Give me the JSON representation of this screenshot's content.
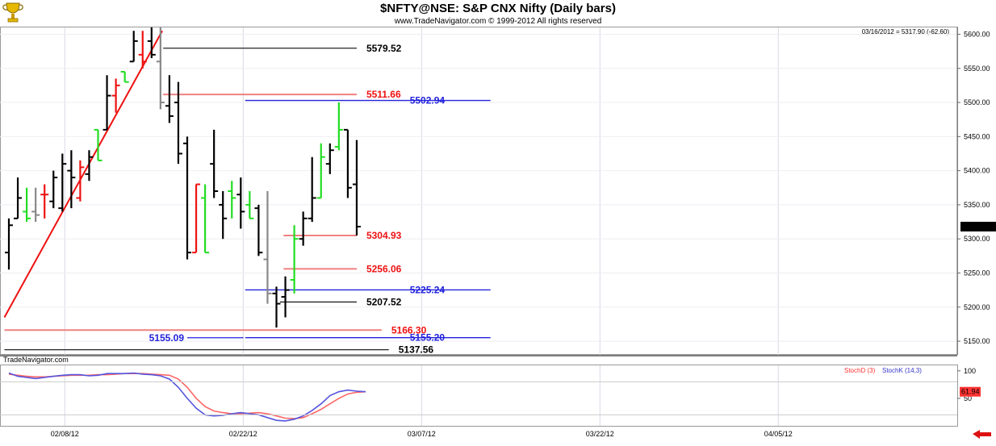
{
  "header": {
    "title": "$NFTY@NSE:  S&P CNX Nifty  (Daily bars)",
    "subtitle": "www.TradeNavigator.com © 1999-2012 All rights reserved",
    "readout": "03/16/2012 = 5317.90 (-62.60)",
    "logo_icon": "trophy-icon"
  },
  "colors": {
    "up_bar": "#000000",
    "down_bar": "#000000",
    "green_bar": "#22dd22",
    "red_bar": "#ee1111",
    "trend_line": "#ee1111",
    "blue_level": "#2222dd",
    "red_level": "#f08080",
    "black_level": "#222222",
    "stoch_d": "#ff6666",
    "stoch_k": "#5555dd",
    "grid": "#d9d9e6"
  },
  "chart_data": [
    {
      "type": "ohlc",
      "y_ticks": [
        5150,
        5200,
        5250,
        5300,
        5350,
        5400,
        5450,
        5500,
        5550,
        5600
      ],
      "ylim": [
        5130,
        5610
      ],
      "x_ticks": [
        "02/08/12",
        "02/22/12",
        "03/07/12",
        "03/22/12",
        "04/05/12"
      ],
      "last_price_label": "5317.90",
      "bars": [
        {
          "o": 5280,
          "h": 5330,
          "l": 5255,
          "c": 5320,
          "color": "black"
        },
        {
          "o": 5330,
          "h": 5390,
          "l": 5330,
          "c": 5360,
          "color": "black"
        },
        {
          "o": 5340,
          "h": 5375,
          "l": 5325,
          "c": 5330,
          "color": "green"
        },
        {
          "o": 5340,
          "h": 5375,
          "l": 5325,
          "c": 5335,
          "color": "gray"
        },
        {
          "o": 5365,
          "h": 5380,
          "l": 5330,
          "c": 5365,
          "color": "red"
        },
        {
          "o": 5355,
          "h": 5400,
          "l": 5345,
          "c": 5390,
          "color": "black"
        },
        {
          "o": 5345,
          "h": 5425,
          "l": 5340,
          "c": 5410,
          "color": "black"
        },
        {
          "o": 5400,
          "h": 5430,
          "l": 5345,
          "c": 5390,
          "color": "black"
        },
        {
          "o": 5360,
          "h": 5415,
          "l": 5355,
          "c": 5405,
          "color": "red"
        },
        {
          "o": 5395,
          "h": 5430,
          "l": 5385,
          "c": 5420,
          "color": "black"
        },
        {
          "o": 5460,
          "h": 5460,
          "l": 5415,
          "c": 5415,
          "color": "green"
        },
        {
          "o": 5460,
          "h": 5540,
          "l": 5460,
          "c": 5510,
          "color": "black"
        },
        {
          "o": 5510,
          "h": 5535,
          "l": 5485,
          "c": 5525,
          "color": "red"
        },
        {
          "o": 5545,
          "h": 5545,
          "l": 5530,
          "c": 5530,
          "color": "green"
        },
        {
          "o": 5560,
          "h": 5605,
          "l": 5560,
          "c": 5590,
          "color": "black"
        },
        {
          "o": 5570,
          "h": 5605,
          "l": 5550,
          "c": 5560,
          "color": "red"
        },
        {
          "o": 5590,
          "h": 5610,
          "l": 5565,
          "c": 5570,
          "color": "black"
        },
        {
          "o": 5560,
          "h": 5620,
          "l": 5490,
          "c": 5500,
          "color": "gray"
        },
        {
          "o": 5495,
          "h": 5540,
          "l": 5470,
          "c": 5480,
          "color": "black"
        },
        {
          "o": 5500,
          "h": 5530,
          "l": 5410,
          "c": 5425,
          "color": "black"
        },
        {
          "o": 5440,
          "h": 5450,
          "l": 5270,
          "c": 5280,
          "color": "black"
        },
        {
          "o": 5280,
          "h": 5380,
          "l": 5280,
          "c": 5380,
          "color": "red"
        },
        {
          "o": 5360,
          "h": 5380,
          "l": 5280,
          "c": 5280,
          "color": "green"
        },
        {
          "o": 5410,
          "h": 5460,
          "l": 5360,
          "c": 5370,
          "color": "black"
        },
        {
          "o": 5350,
          "h": 5370,
          "l": 5300,
          "c": 5330,
          "color": "black"
        },
        {
          "o": 5370,
          "h": 5385,
          "l": 5330,
          "c": 5360,
          "color": "green"
        },
        {
          "o": 5365,
          "h": 5390,
          "l": 5315,
          "c": 5340,
          "color": "black"
        },
        {
          "o": 5350,
          "h": 5370,
          "l": 5330,
          "c": 5330,
          "color": "green"
        },
        {
          "o": 5345,
          "h": 5350,
          "l": 5275,
          "c": 5280,
          "color": "black"
        },
        {
          "o": 5270,
          "h": 5370,
          "l": 5205,
          "c": 5220,
          "color": "gray"
        },
        {
          "o": 5220,
          "h": 5230,
          "l": 5170,
          "c": 5205,
          "color": "black"
        },
        {
          "o": 5215,
          "h": 5245,
          "l": 5185,
          "c": 5225,
          "color": "black"
        },
        {
          "o": 5240,
          "h": 5320,
          "l": 5220,
          "c": 5300,
          "color": "green"
        },
        {
          "o": 5300,
          "h": 5340,
          "l": 5290,
          "c": 5330,
          "color": "black"
        },
        {
          "o": 5330,
          "h": 5420,
          "l": 5325,
          "c": 5360,
          "color": "black"
        },
        {
          "o": 5360,
          "h": 5440,
          "l": 5360,
          "c": 5420,
          "color": "green"
        },
        {
          "o": 5410,
          "h": 5440,
          "l": 5395,
          "c": 5430,
          "color": "black"
        },
        {
          "o": 5435,
          "h": 5500,
          "l": 5430,
          "c": 5460,
          "color": "green"
        },
        {
          "o": 5460,
          "h": 5460,
          "l": 5360,
          "c": 5375,
          "color": "black"
        },
        {
          "o": 5380,
          "h": 5445,
          "l": 5305,
          "c": 5318,
          "color": "black"
        }
      ],
      "trend_line": {
        "from": {
          "bar": -0.5,
          "y": 5185
        },
        "to": {
          "bar": 17.2,
          "y": 5605
        }
      },
      "levels": [
        {
          "label": "5579.52",
          "value": 5579.52,
          "color": "black",
          "from_bar": 17.3,
          "to_bar": 39
        },
        {
          "label": "5511.66",
          "value": 5511.66,
          "color": "red",
          "from_bar": 17.3,
          "to_bar": 39
        },
        {
          "label": "5502.94",
          "value": 5502.94,
          "color": "blue",
          "from_bar": 26.5,
          "to_bar": 54
        },
        {
          "label": "5304.93",
          "value": 5304.93,
          "color": "red",
          "from_bar": 30.8,
          "to_bar": 39
        },
        {
          "label": "5256.06",
          "value": 5256.06,
          "color": "red",
          "from_bar": 30.8,
          "to_bar": 39
        },
        {
          "label": "5225.24",
          "value": 5225.24,
          "color": "blue",
          "from_bar": 26.5,
          "to_bar": 54
        },
        {
          "label": "5207.52",
          "value": 5207.52,
          "color": "black",
          "from_bar": 30.4,
          "to_bar": 39
        },
        {
          "label": "5166.30",
          "value": 5166.3,
          "color": "red",
          "from_bar": -0.5,
          "to_bar": 41.8
        },
        {
          "label": "5155.20",
          "value": 5155.2,
          "color": "blue",
          "from_bar": 26.5,
          "to_bar": 54
        },
        {
          "label": "5155.09",
          "value": 5155.09,
          "color": "blue",
          "from_bar": 20,
          "to_bar": 26.3
        },
        {
          "label": "5137.56",
          "value": 5137.56,
          "color": "black",
          "from_bar": -0.5,
          "to_bar": 42.6
        }
      ]
    },
    {
      "type": "line",
      "panel_label": "TradeNavigator.com",
      "ylim": [
        0,
        110
      ],
      "y_ticks": [
        50,
        100
      ],
      "last_value_label": "61.94",
      "series": [
        {
          "name": "StochD (3)",
          "color": "#ff6666",
          "values": [
            94,
            92,
            90,
            89,
            89,
            90,
            91,
            92,
            92,
            92,
            93,
            93,
            94,
            95,
            95,
            95,
            94,
            93,
            92,
            85,
            70,
            50,
            35,
            27,
            24,
            22,
            22,
            23,
            24,
            22,
            18,
            14,
            13,
            15,
            22,
            30,
            40,
            50,
            58,
            61,
            62
          ]
        },
        {
          "name": "StochK (14,3)",
          "color": "#5555dd",
          "values": [
            96,
            90,
            88,
            86,
            88,
            90,
            92,
            93,
            93,
            91,
            92,
            95,
            95,
            95,
            96,
            94,
            93,
            91,
            85,
            70,
            50,
            32,
            20,
            18,
            19,
            22,
            24,
            22,
            20,
            15,
            10,
            9,
            12,
            18,
            28,
            40,
            55,
            62,
            65,
            63,
            62
          ]
        }
      ]
    }
  ]
}
